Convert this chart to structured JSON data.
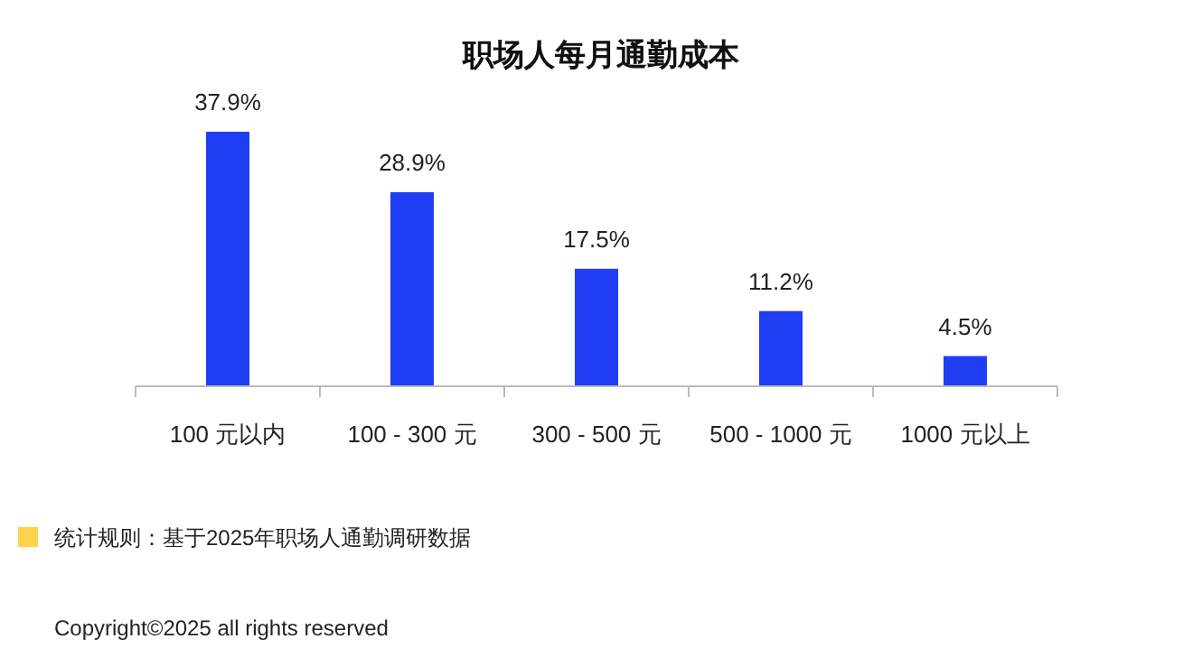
{
  "chart_data": {
    "type": "bar",
    "title": "职场人每月通勤成本",
    "categories": [
      "100 元以内",
      "100 - 300 元",
      "300 - 500 元",
      "500 - 1000 元",
      "1000 元以上"
    ],
    "values": [
      37.9,
      28.9,
      17.5,
      11.2,
      4.5
    ],
    "value_labels": [
      "37.9%",
      "28.9%",
      "17.5%",
      "11.2%",
      "4.5%"
    ],
    "color": "#1f3df2",
    "annotations": [
      "统计规则：基于2025年职场人通勤调研数据",
      "Copyright©2025 all rights reserved"
    ]
  }
}
